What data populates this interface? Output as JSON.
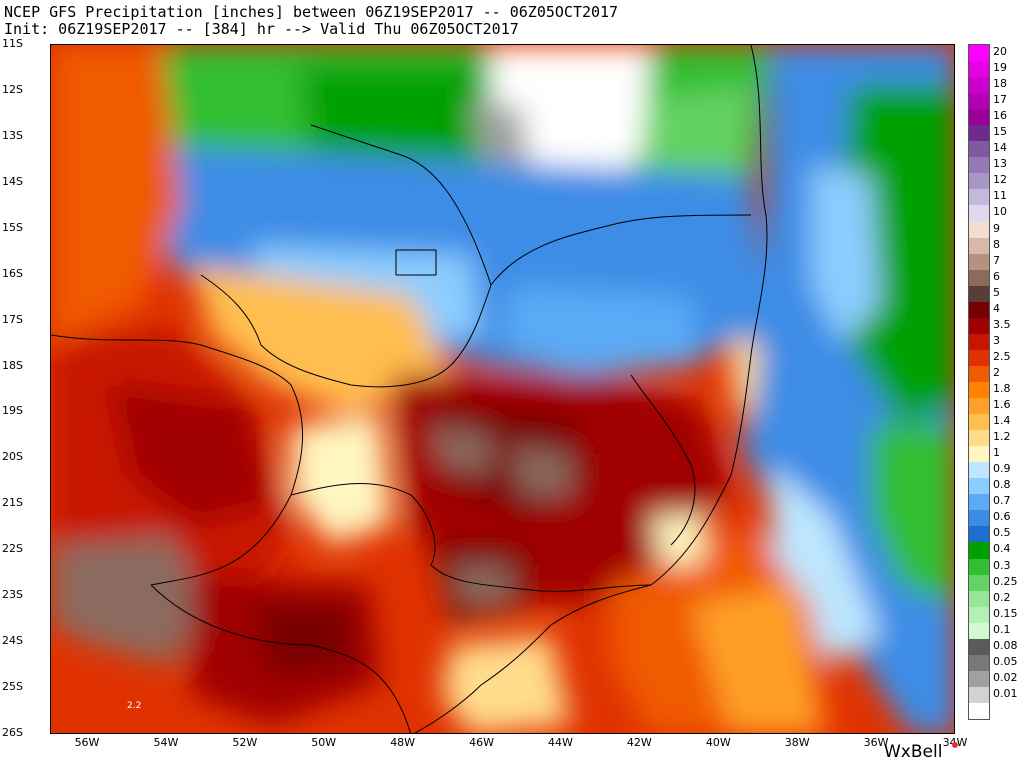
{
  "header": {
    "title_line1": "NCEP GFS Precipitation [inches] between 06Z19SEP2017 -- 06Z05OCT2017",
    "title_line2": "Init: 06Z19SEP2017 -- [384] hr --> Valid Thu 06Z05OCT2017"
  },
  "map": {
    "lat_labels": [
      "11S",
      "12S",
      "13S",
      "14S",
      "15S",
      "16S",
      "17S",
      "18S",
      "19S",
      "20S",
      "21S",
      "22S",
      "23S",
      "24S",
      "25S",
      "26S"
    ],
    "lon_labels": [
      "56W",
      "54W",
      "52W",
      "50W",
      "48W",
      "46W",
      "44W",
      "42W",
      "40W",
      "38W",
      "36W",
      "34W"
    ],
    "point_value": "2.2"
  },
  "legend": {
    "items": [
      {
        "label": "20",
        "color": "#ff00ff"
      },
      {
        "label": "19",
        "color": "#e600e6"
      },
      {
        "label": "18",
        "color": "#cc00cc"
      },
      {
        "label": "17",
        "color": "#b300b3"
      },
      {
        "label": "16",
        "color": "#990099"
      },
      {
        "label": "15",
        "color": "#6e2a8c"
      },
      {
        "label": "14",
        "color": "#7e5aa0"
      },
      {
        "label": "13",
        "color": "#9478b8"
      },
      {
        "label": "12",
        "color": "#a896c8"
      },
      {
        "label": "11",
        "color": "#c4b8dc"
      },
      {
        "label": "10",
        "color": "#e0d8ec"
      },
      {
        "label": "9",
        "color": "#f2ddd0"
      },
      {
        "label": "8",
        "color": "#d8b8a8"
      },
      {
        "label": "7",
        "color": "#b89080"
      },
      {
        "label": "6",
        "color": "#8c6a5e"
      },
      {
        "label": "5",
        "color": "#5a3c38"
      },
      {
        "label": "4",
        "color": "#780000"
      },
      {
        "label": "3.5",
        "color": "#a00000"
      },
      {
        "label": "3",
        "color": "#c81400"
      },
      {
        "label": "2.5",
        "color": "#e03200"
      },
      {
        "label": "2",
        "color": "#f05a00"
      },
      {
        "label": "1.8",
        "color": "#ff8200"
      },
      {
        "label": "1.6",
        "color": "#ffa028"
      },
      {
        "label": "1.4",
        "color": "#ffbe50"
      },
      {
        "label": "1.2",
        "color": "#ffdc8c"
      },
      {
        "label": "1",
        "color": "#fff6c0"
      },
      {
        "label": "0.9",
        "color": "#bee6ff"
      },
      {
        "label": "0.8",
        "color": "#8ccdff"
      },
      {
        "label": "0.7",
        "color": "#5aaaf5"
      },
      {
        "label": "0.6",
        "color": "#3c8ce6"
      },
      {
        "label": "0.5",
        "color": "#1e6ed2"
      },
      {
        "label": "0.4",
        "color": "#00a000"
      },
      {
        "label": "0.3",
        "color": "#32be32"
      },
      {
        "label": "0.25",
        "color": "#64d264"
      },
      {
        "label": "0.2",
        "color": "#96e696"
      },
      {
        "label": "0.15",
        "color": "#b4f0b4"
      },
      {
        "label": "0.1",
        "color": "#d2fad2"
      },
      {
        "label": "0.08",
        "color": "#5a5a5a"
      },
      {
        "label": "0.05",
        "color": "#787878"
      },
      {
        "label": "0.02",
        "color": "#a0a0a0"
      },
      {
        "label": "0.01",
        "color": "#d2d2d2"
      },
      {
        "label": "",
        "color": "#ffffff"
      }
    ]
  },
  "branding": {
    "text": "WxBell"
  }
}
